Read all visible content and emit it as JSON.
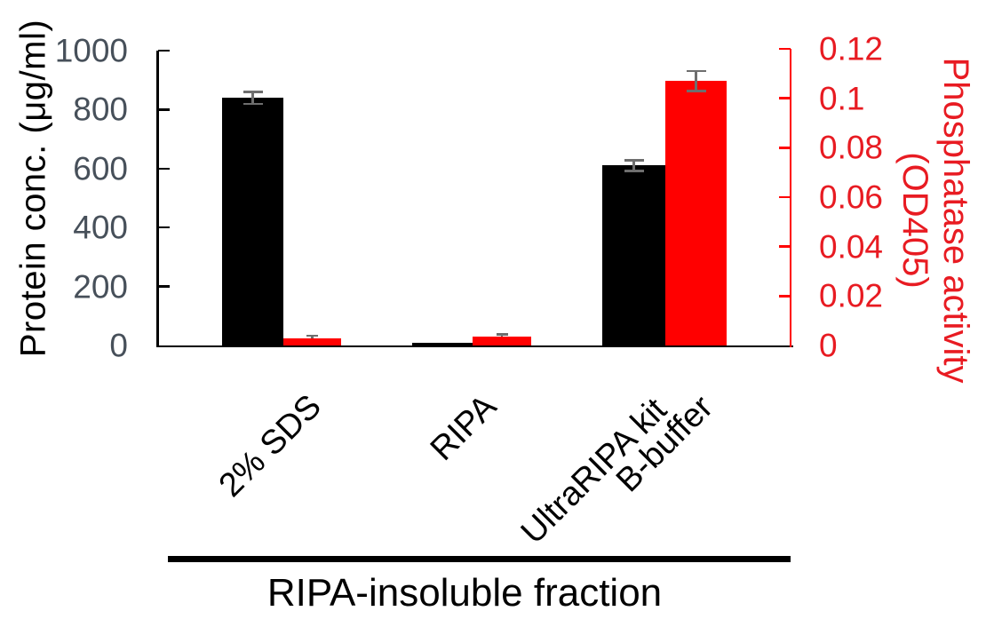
{
  "chart_data": {
    "type": "bar",
    "title": "",
    "categories": [
      "2% SDS",
      "RIPA",
      "UltraRIPA kit B-buffer"
    ],
    "x_labels": [
      [
        "2% SDS"
      ],
      [
        "RIPA"
      ],
      [
        "UltraRIPA kit",
        "B-buffer"
      ]
    ],
    "series": [
      {
        "name": "Protein conc.",
        "axis": "left",
        "color": "#000000",
        "values": [
          840,
          8,
          610
        ],
        "errors": [
          20,
          0,
          18
        ]
      },
      {
        "name": "Phosphatase activity",
        "axis": "right",
        "color": "#ff0000",
        "values": [
          0.003,
          0.0035,
          0.107
        ],
        "errors": [
          0.001,
          0.001,
          0.004
        ]
      }
    ],
    "left_axis": {
      "label": "Protein conc. (μg/ml)",
      "range": [
        0,
        1000
      ],
      "ticks": [
        0,
        200,
        400,
        600,
        800,
        1000
      ],
      "tick_labels": [
        "0",
        "200",
        "400",
        "600",
        "800",
        "1000"
      ],
      "axis_color": "#000000",
      "tick_label_color": "#47505a",
      "title_color": "#000000"
    },
    "right_axis": {
      "label_line1": "Phosphatase activity",
      "label_line2": "(OD405)",
      "range": [
        0,
        0.12
      ],
      "ticks": [
        0,
        0.02,
        0.04,
        0.06,
        0.08,
        0.1,
        0.12
      ],
      "tick_labels": [
        "0",
        "0.02",
        "0.04",
        "0.06",
        "0.08",
        "0.1",
        "0.12"
      ],
      "axis_color": "#ff0000",
      "tick_label_color": "#e81b22",
      "title_color": "#e81b22"
    },
    "annotation": {
      "group_label": "RIPA-insoluble fraction"
    },
    "error_bar_color": "#6e6e6e",
    "legend": "none",
    "grid": "off"
  }
}
